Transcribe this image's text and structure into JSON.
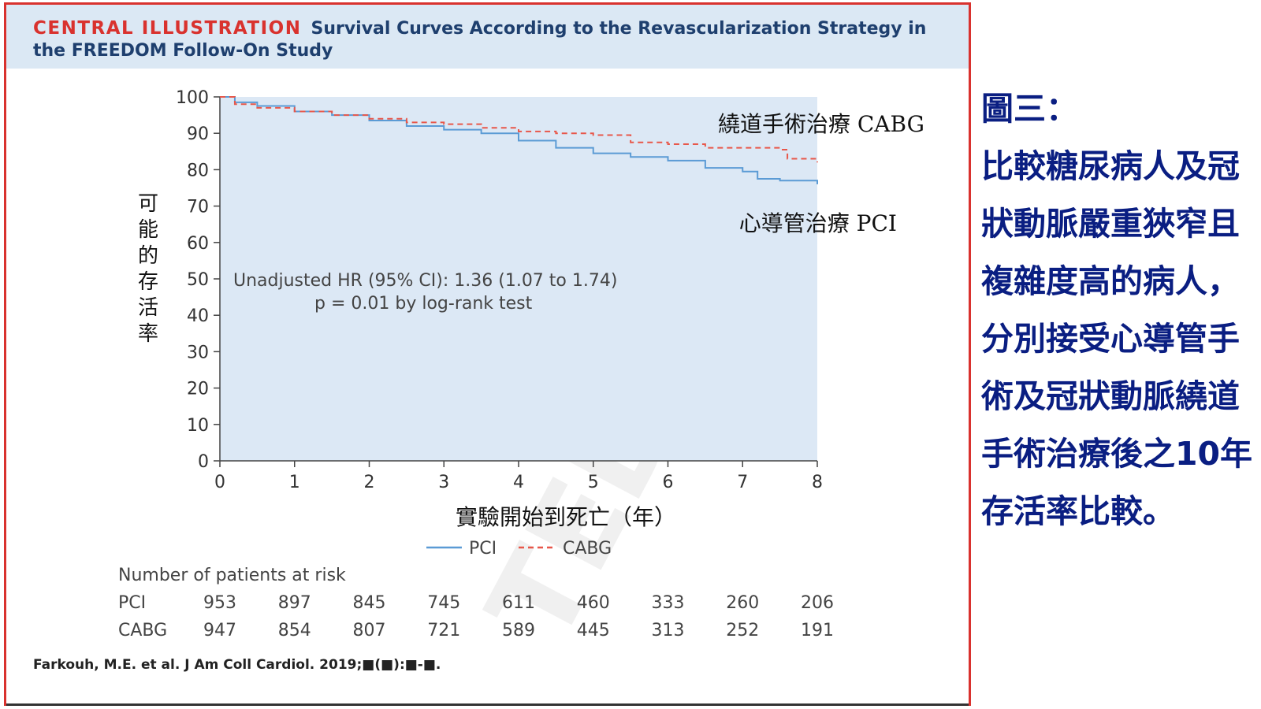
{
  "header": {
    "label": "CENTRAL ILLUSTRATION",
    "title": "Survival Curves According to the Revascularization Strategy in the FREEDOM Follow-On Study"
  },
  "citation": "Farkouh, M.E. et al. J Am Coll Cardiol. 2019;■(■):■-■.",
  "right_panel": {
    "heading": "圖三：",
    "body": "比較糖尿病人及冠狀動脈嚴重狹窄且複雜度高的病人，分別接受心導管手術及冠狀動脈繞道手術治療後之10年存活率比較。"
  },
  "watermark": "TED P",
  "colors": {
    "pci": "#5b9bd5",
    "cabg": "#e8574a",
    "plot_bg": "#dce8f5",
    "frame": "#d9322e",
    "header_bg": "#dbe8f4",
    "right_text": "#0a1e82"
  },
  "chart_data": {
    "type": "line",
    "title": "Survival Curves According to the Revascularization Strategy in the FREEDOM Follow-On Study",
    "xlabel": "實驗開始到死亡（年）",
    "ylabel": "可能的存活率",
    "xlim": [
      0,
      8
    ],
    "ylim": [
      0,
      100
    ],
    "x_ticks": [
      0,
      1,
      2,
      3,
      4,
      5,
      6,
      7,
      8
    ],
    "y_ticks": [
      0,
      10,
      20,
      30,
      40,
      50,
      60,
      70,
      80,
      90,
      100
    ],
    "series": [
      {
        "name": "PCI",
        "color": "#5b9bd5",
        "dash": "solid",
        "curve_label": "心導管治療 PCI",
        "x": [
          0,
          0.2,
          0.5,
          1.0,
          1.5,
          2.0,
          2.5,
          3.0,
          3.5,
          4.0,
          4.5,
          5.0,
          5.5,
          6.0,
          6.5,
          7.0,
          7.2,
          7.5,
          8.0
        ],
        "y": [
          100,
          98.5,
          97.5,
          96,
          95,
          93.5,
          92,
          91,
          90,
          88,
          86,
          84.5,
          83.5,
          82.5,
          80.5,
          79.5,
          77.5,
          77,
          76
        ]
      },
      {
        "name": "CABG",
        "color": "#e8574a",
        "dash": "dashed",
        "curve_label": "繞道手術治療 CABG",
        "x": [
          0,
          0.2,
          0.5,
          1.0,
          1.5,
          2.0,
          2.5,
          3.0,
          3.5,
          4.0,
          4.5,
          5.0,
          5.5,
          6.0,
          6.5,
          7.0,
          7.5,
          7.6,
          8.0
        ],
        "y": [
          100,
          98,
          97,
          96,
          95,
          94,
          93,
          92.5,
          91.5,
          90.5,
          90,
          89.5,
          87.5,
          87,
          86,
          86,
          85.5,
          83,
          82
        ]
      }
    ],
    "legend": {
      "placement": "bottom",
      "entries": [
        "PCI",
        "CABG"
      ]
    },
    "annotation": [
      "Unadjusted HR (95% CI): 1.36 (1.07 to 1.74)",
      "p = 0.01 by log-rank test"
    ],
    "risk_table": {
      "title": "Number of patients at risk",
      "rows": [
        {
          "label": "PCI",
          "values": [
            953,
            897,
            845,
            745,
            611,
            460,
            333,
            260,
            206
          ]
        },
        {
          "label": "CABG",
          "values": [
            947,
            854,
            807,
            721,
            589,
            445,
            313,
            252,
            191
          ]
        }
      ]
    }
  }
}
